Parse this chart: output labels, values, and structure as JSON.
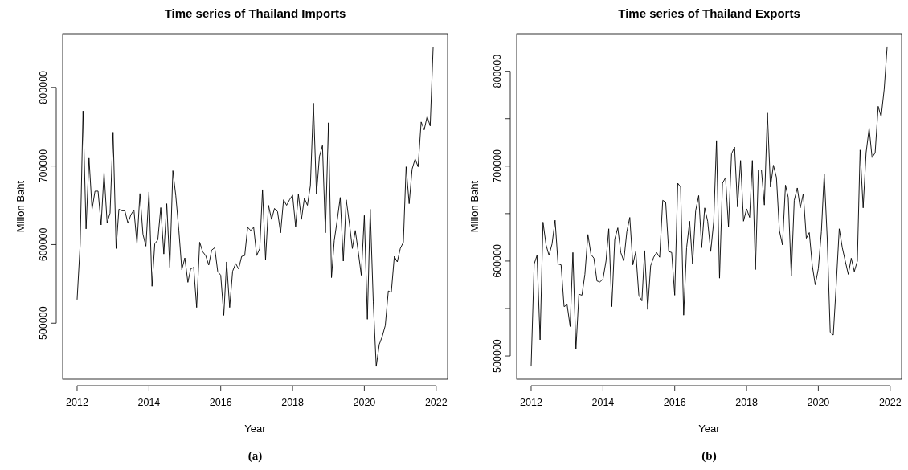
{
  "chart_data": [
    {
      "type": "line",
      "title": "Time series of Thailand Imports",
      "xlabel": "Year",
      "ylabel": "Milion Baht",
      "annotations": [
        "(a)"
      ],
      "grid": false,
      "marker": "none",
      "line_style": "solid",
      "xlim": [
        "2011-08-07",
        "2022-04-27"
      ],
      "ylim": [
        428700,
        868300
      ],
      "xticks": [
        "2012",
        "2014",
        "2016",
        "2018",
        "2020",
        "2022"
      ],
      "yticks": [
        500000,
        600000,
        700000,
        800000
      ],
      "x": [
        "2012-01",
        "2012-02",
        "2012-03",
        "2012-04",
        "2012-05",
        "2012-06",
        "2012-07",
        "2012-08",
        "2012-09",
        "2012-10",
        "2012-11",
        "2012-12",
        "2013-01",
        "2013-02",
        "2013-03",
        "2013-04",
        "2013-05",
        "2013-06",
        "2013-07",
        "2013-08",
        "2013-09",
        "2013-10",
        "2013-11",
        "2013-12",
        "2014-01",
        "2014-02",
        "2014-03",
        "2014-04",
        "2014-05",
        "2014-06",
        "2014-07",
        "2014-08",
        "2014-09",
        "2014-10",
        "2014-11",
        "2014-12",
        "2015-01",
        "2015-02",
        "2015-03",
        "2015-04",
        "2015-05",
        "2015-06",
        "2015-07",
        "2015-08",
        "2015-09",
        "2015-10",
        "2015-11",
        "2015-12",
        "2016-01",
        "2016-02",
        "2016-03",
        "2016-04",
        "2016-05",
        "2016-06",
        "2016-07",
        "2016-08",
        "2016-09",
        "2016-10",
        "2016-11",
        "2016-12",
        "2017-01",
        "2017-02",
        "2017-03",
        "2017-04",
        "2017-05",
        "2017-06",
        "2017-07",
        "2017-08",
        "2017-09",
        "2017-10",
        "2017-11",
        "2017-12",
        "2018-01",
        "2018-02",
        "2018-03",
        "2018-04",
        "2018-05",
        "2018-06",
        "2018-07",
        "2018-08",
        "2018-09",
        "2018-10",
        "2018-11",
        "2018-12",
        "2019-01",
        "2019-02",
        "2019-03",
        "2019-04",
        "2019-05",
        "2019-06",
        "2019-07",
        "2019-08",
        "2019-09",
        "2019-10",
        "2019-11",
        "2019-12",
        "2020-01",
        "2020-02",
        "2020-03",
        "2020-04",
        "2020-05",
        "2020-06",
        "2020-07",
        "2020-08",
        "2020-09",
        "2020-10",
        "2020-11",
        "2020-12",
        "2021-01",
        "2021-02",
        "2021-03",
        "2021-04",
        "2021-05",
        "2021-06",
        "2021-07",
        "2021-08",
        "2021-09",
        "2021-10",
        "2021-11",
        "2021-12"
      ],
      "series": [
        {
          "color": "#000000",
          "values": [
            530000,
            600000,
            770000,
            620000,
            710000,
            645000,
            668000,
            668000,
            625000,
            692000,
            628000,
            640000,
            743000,
            595000,
            645000,
            643000,
            643000,
            627000,
            638000,
            644000,
            601000,
            665000,
            613000,
            598000,
            667000,
            547000,
            601000,
            606000,
            647000,
            588000,
            652000,
            571000,
            694000,
            662000,
            618000,
            568000,
            583000,
            552000,
            569000,
            571000,
            520000,
            603000,
            591000,
            586000,
            574000,
            593000,
            596000,
            566000,
            561000,
            510000,
            578000,
            520000,
            566000,
            576000,
            569000,
            585000,
            586000,
            622000,
            618000,
            622000,
            586000,
            595000,
            670000,
            581000,
            650000,
            632000,
            646000,
            642000,
            615000,
            657000,
            650000,
            657000,
            663000,
            623000,
            664000,
            632000,
            659000,
            650000,
            675000,
            780000,
            664000,
            712000,
            726000,
            615000,
            755000,
            558000,
            605000,
            632000,
            660000,
            579000,
            657000,
            628000,
            595000,
            618000,
            590000,
            561000,
            637000,
            505000,
            645000,
            527000,
            445000,
            473000,
            483000,
            497000,
            541000,
            539000,
            585000,
            578000,
            595000,
            603000,
            699000,
            652000,
            696000,
            709000,
            699000,
            756000,
            746000,
            763000,
            751000,
            851000
          ]
        }
      ]
    },
    {
      "type": "line",
      "title": "Time series of Thailand Exports",
      "xlabel": "Year",
      "ylabel": "Milion Baht",
      "annotations": [
        "(b)"
      ],
      "grid": false,
      "marker": "none",
      "line_style": "solid",
      "xlim": [
        "2011-08-07",
        "2022-04-27"
      ],
      "ylim": [
        475500,
        839500
      ],
      "xticks": [
        "2012",
        "2014",
        "2016",
        "2018",
        "2020",
        "2022"
      ],
      "yticks": [
        500000,
        {
          "value": 550000,
          "label": null
        },
        600000,
        {
          "value": 650000,
          "label": null
        },
        700000,
        {
          "value": 750000,
          "label": null
        },
        800000
      ],
      "x": [
        "2012-01",
        "2012-02",
        "2012-03",
        "2012-04",
        "2012-05",
        "2012-06",
        "2012-07",
        "2012-08",
        "2012-09",
        "2012-10",
        "2012-11",
        "2012-12",
        "2013-01",
        "2013-02",
        "2013-03",
        "2013-04",
        "2013-05",
        "2013-06",
        "2013-07",
        "2013-08",
        "2013-09",
        "2013-10",
        "2013-11",
        "2013-12",
        "2014-01",
        "2014-02",
        "2014-03",
        "2014-04",
        "2014-05",
        "2014-06",
        "2014-07",
        "2014-08",
        "2014-09",
        "2014-10",
        "2014-11",
        "2014-12",
        "2015-01",
        "2015-02",
        "2015-03",
        "2015-04",
        "2015-05",
        "2015-06",
        "2015-07",
        "2015-08",
        "2015-09",
        "2015-10",
        "2015-11",
        "2015-12",
        "2016-01",
        "2016-02",
        "2016-03",
        "2016-04",
        "2016-05",
        "2016-06",
        "2016-07",
        "2016-08",
        "2016-09",
        "2016-10",
        "2016-11",
        "2016-12",
        "2017-01",
        "2017-02",
        "2017-03",
        "2017-04",
        "2017-05",
        "2017-06",
        "2017-07",
        "2017-08",
        "2017-09",
        "2017-10",
        "2017-11",
        "2017-12",
        "2018-01",
        "2018-02",
        "2018-03",
        "2018-04",
        "2018-05",
        "2018-06",
        "2018-07",
        "2018-08",
        "2018-09",
        "2018-10",
        "2018-11",
        "2018-12",
        "2019-01",
        "2019-02",
        "2019-03",
        "2019-04",
        "2019-05",
        "2019-06",
        "2019-07",
        "2019-08",
        "2019-09",
        "2019-10",
        "2019-11",
        "2019-12",
        "2020-01",
        "2020-02",
        "2020-03",
        "2020-04",
        "2020-05",
        "2020-06",
        "2020-07",
        "2020-08",
        "2020-09",
        "2020-10",
        "2020-11",
        "2020-12",
        "2021-01",
        "2021-02",
        "2021-03",
        "2021-04",
        "2021-05",
        "2021-06",
        "2021-07",
        "2021-08",
        "2021-09",
        "2021-10",
        "2021-11",
        "2021-12"
      ],
      "series": [
        {
          "color": "#000000",
          "values": [
            489000,
            597000,
            606000,
            517000,
            641000,
            617000,
            606000,
            618000,
            643000,
            597000,
            596000,
            552000,
            554000,
            531000,
            609000,
            507000,
            565000,
            564000,
            586000,
            628000,
            607000,
            603000,
            579000,
            578000,
            581000,
            600000,
            634000,
            552000,
            623000,
            635000,
            609000,
            600000,
            631000,
            646000,
            596000,
            610000,
            564000,
            558000,
            611000,
            549000,
            595000,
            604000,
            609000,
            604000,
            664000,
            662000,
            610000,
            609000,
            564000,
            682000,
            678000,
            543000,
            614000,
            642000,
            597000,
            653000,
            669000,
            614000,
            656000,
            642000,
            610000,
            642000,
            727000,
            582000,
            682000,
            688000,
            636000,
            713000,
            720000,
            657000,
            706000,
            642000,
            655000,
            646000,
            706000,
            591000,
            696000,
            696000,
            659000,
            756000,
            678000,
            701000,
            688000,
            632000,
            617000,
            680000,
            667000,
            584000,
            664000,
            677000,
            656000,
            671000,
            624000,
            630000,
            595000,
            575000,
            592000,
            631000,
            692000,
            623000,
            525000,
            522000,
            575000,
            634000,
            614000,
            600000,
            586000,
            603000,
            589000,
            600000,
            717000,
            656000,
            714000,
            740000,
            709000,
            714000,
            763000,
            752000,
            781000,
            826000
          ]
        }
      ]
    }
  ]
}
